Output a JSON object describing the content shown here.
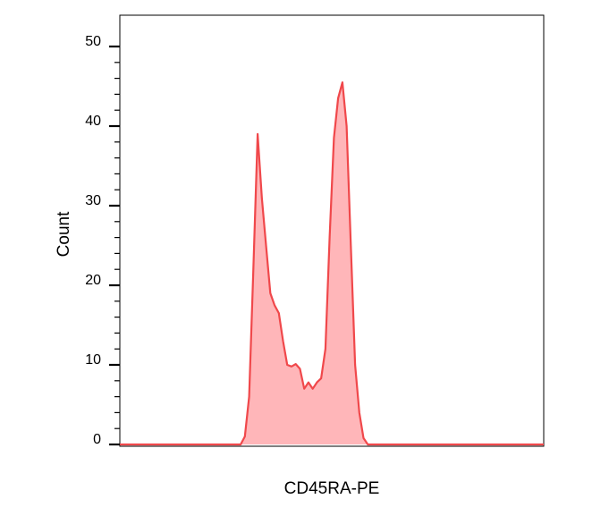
{
  "chart_data": {
    "type": "area",
    "title": "",
    "xlabel": "CD45RA-PE",
    "ylabel": "Count",
    "xlim": [
      0,
      1000
    ],
    "ylim": [
      0,
      52
    ],
    "grid": false,
    "legend": "none",
    "y_ticks": [
      0,
      10,
      20,
      30,
      40,
      50
    ],
    "y_minor_step": 2,
    "fill_color": "#ffb6b9",
    "line_color": "#f0484b",
    "series": [
      {
        "x": [
          0,
          285,
          295,
          305,
          315,
          325,
          335,
          345,
          355,
          365,
          375,
          385,
          395,
          405,
          415,
          425,
          435,
          445,
          455,
          465,
          475,
          485,
          495,
          505,
          515,
          525,
          535,
          545,
          555,
          565,
          575,
          585,
          595,
          605,
          615,
          625,
          635,
          645,
          655,
          665,
          675,
          685,
          695,
          705,
          715,
          730,
          1000
        ],
        "values": [
          0,
          0,
          1,
          6,
          22,
          39,
          31,
          25,
          19,
          17.5,
          16.5,
          13,
          10,
          9.8,
          10.1,
          9.5,
          7,
          7.8,
          7,
          7.8,
          8.3,
          12,
          26,
          38.5,
          43.5,
          45.5,
          40,
          25,
          10,
          4,
          0.8,
          0,
          0,
          0,
          0,
          0,
          0,
          0,
          0,
          0,
          0,
          0,
          0,
          0,
          0,
          0,
          0
        ]
      }
    ]
  }
}
